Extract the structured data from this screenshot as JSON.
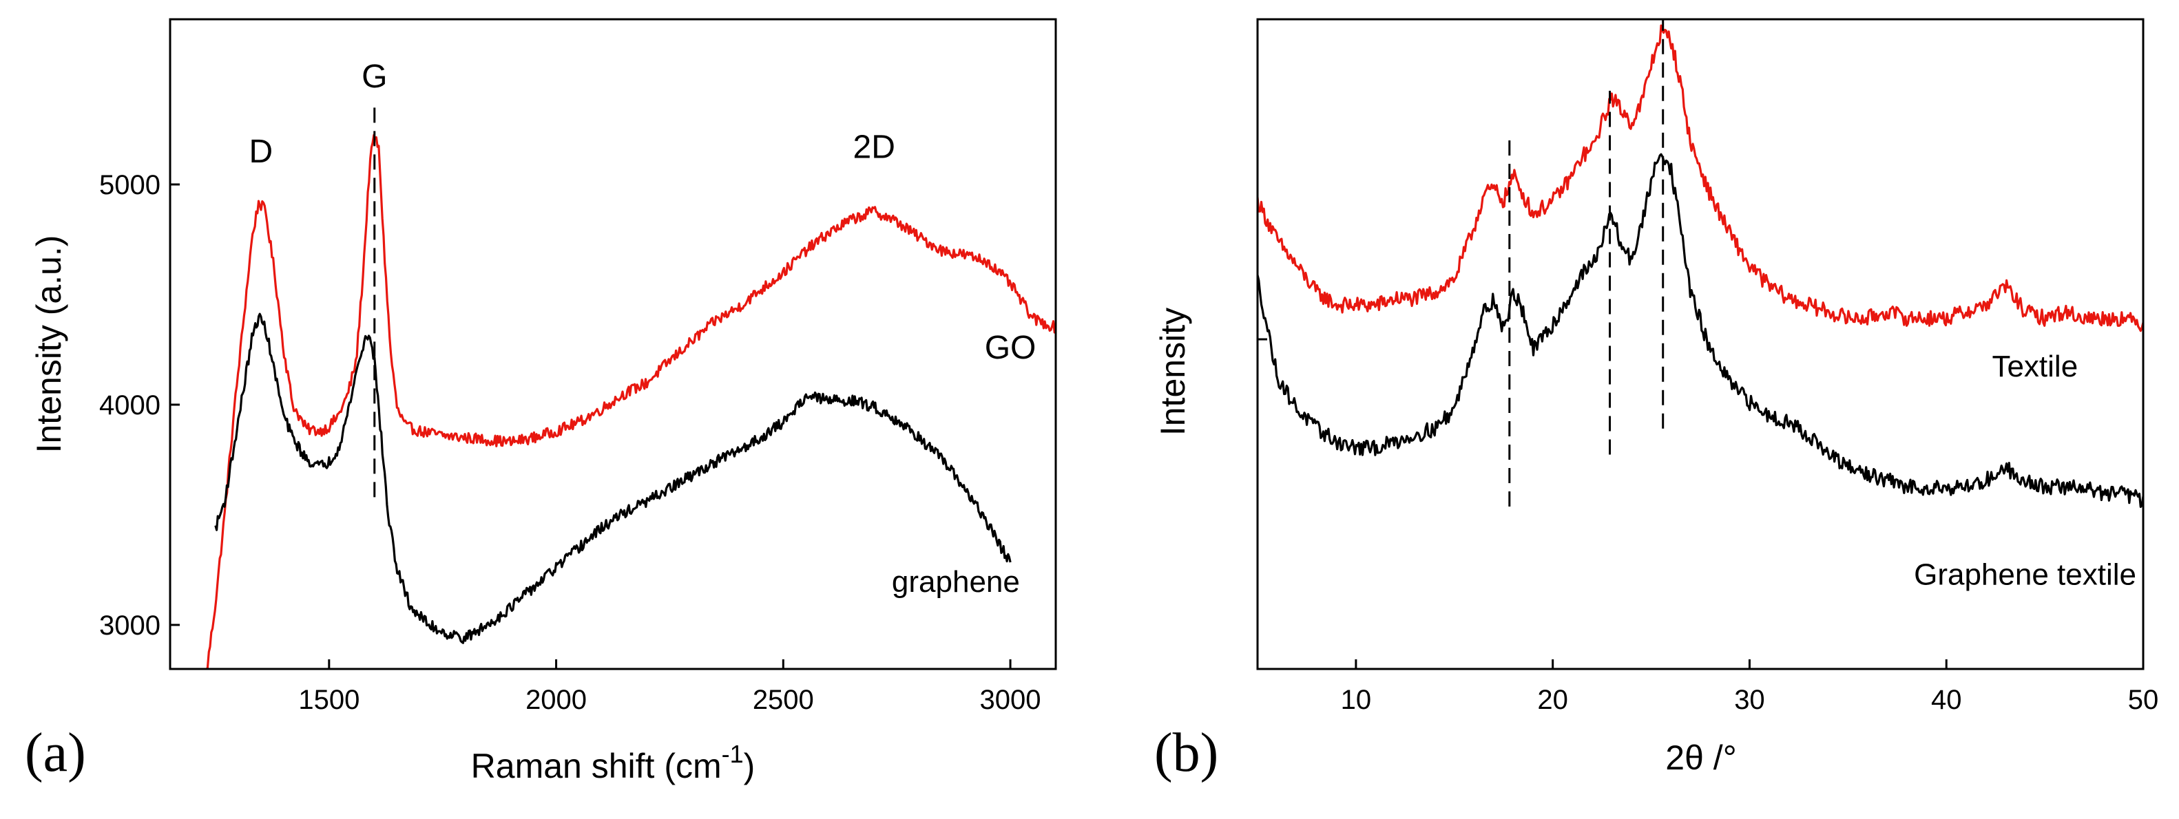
{
  "chart_data": [
    {
      "type": "line",
      "panel_label": "(a)",
      "title": "",
      "xlabel": "Raman shift (cm",
      "xlabel_superscript": "-1",
      "xlabel_suffix": ")",
      "ylabel": "Intensity (a.u.)",
      "xlim": [
        1150,
        3100
      ],
      "ylim": [
        2800,
        5750
      ],
      "xticks": [
        1500,
        2000,
        2500,
        3000
      ],
      "xtick_labels": [
        "1500",
        "2000",
        "2500",
        "3000"
      ],
      "yticks": [
        3000,
        4000,
        5000
      ],
      "ytick_labels": [
        "3000",
        "4000",
        "5000"
      ],
      "series": [
        {
          "name": "GO",
          "color": "#e8170f",
          "noise": 25,
          "x": [
            1230,
            1250,
            1270,
            1290,
            1310,
            1330,
            1345,
            1360,
            1380,
            1400,
            1420,
            1450,
            1480,
            1500,
            1520,
            1540,
            1560,
            1575,
            1590,
            1600,
            1610,
            1620,
            1635,
            1650,
            1670,
            1700,
            1750,
            1800,
            1850,
            1900,
            1950,
            2000,
            2050,
            2100,
            2150,
            2200,
            2250,
            2300,
            2350,
            2400,
            2450,
            2500,
            2550,
            2600,
            2650,
            2700,
            2750,
            2800,
            2850,
            2900,
            2950,
            3000,
            3050,
            3100
          ],
          "y": [
            2780,
            3100,
            3500,
            3950,
            4350,
            4750,
            4920,
            4880,
            4600,
            4250,
            4000,
            3890,
            3880,
            3900,
            3950,
            4040,
            4200,
            4600,
            5100,
            5230,
            5150,
            4750,
            4250,
            3980,
            3900,
            3880,
            3860,
            3850,
            3840,
            3830,
            3850,
            3880,
            3920,
            3980,
            4050,
            4100,
            4200,
            4290,
            4380,
            4440,
            4520,
            4600,
            4700,
            4780,
            4840,
            4880,
            4830,
            4760,
            4700,
            4680,
            4650,
            4550,
            4390,
            4350
          ]
        },
        {
          "name": "graphene",
          "color": "#000000",
          "noise": 25,
          "x": [
            1250,
            1270,
            1290,
            1310,
            1330,
            1345,
            1360,
            1380,
            1400,
            1420,
            1450,
            1480,
            1500,
            1520,
            1540,
            1560,
            1580,
            1590,
            1600,
            1615,
            1630,
            1650,
            1680,
            1720,
            1760,
            1800,
            1850,
            1900,
            1950,
            2000,
            2050,
            2100,
            2150,
            2200,
            2250,
            2300,
            2350,
            2400,
            2450,
            2500,
            2550,
            2600,
            2650,
            2700,
            2750,
            2800,
            2850,
            2900,
            2950,
            3000
          ],
          "y": [
            3440,
            3560,
            3800,
            4050,
            4300,
            4400,
            4350,
            4150,
            3950,
            3850,
            3750,
            3720,
            3740,
            3800,
            3950,
            4150,
            4300,
            4320,
            4200,
            3850,
            3500,
            3250,
            3080,
            3000,
            2960,
            2940,
            3000,
            3080,
            3170,
            3260,
            3350,
            3440,
            3510,
            3560,
            3620,
            3680,
            3740,
            3790,
            3850,
            3920,
            4040,
            4020,
            4020,
            3990,
            3930,
            3850,
            3750,
            3620,
            3460,
            3280
          ]
        }
      ],
      "annotations": [
        {
          "text": "D",
          "x": 1350,
          "y": 5100
        },
        {
          "text": "G",
          "x": 1600,
          "y": 5440
        },
        {
          "text": "2D",
          "x": 2700,
          "y": 5120
        },
        {
          "text": "GO",
          "x": 3000,
          "y": 4210
        },
        {
          "text": "graphene",
          "x": 2880,
          "y": 3150
        }
      ],
      "dashed_lines": [
        {
          "x": 1600,
          "y_from": 3580,
          "y_to": 5350
        }
      ]
    },
    {
      "type": "line",
      "panel_label": "(b)",
      "title": "",
      "xlabel": "2θ /°",
      "ylabel": "Intensity",
      "xlim": [
        5,
        50
      ],
      "ylim": [
        0,
        100
      ],
      "xticks": [
        10,
        20,
        30,
        40,
        50
      ],
      "xtick_labels": [
        "10",
        "20",
        "30",
        "40",
        "50"
      ],
      "yticks": [],
      "ytick_labels": [],
      "series": [
        {
          "name": "Textile",
          "color": "#e8170f",
          "noise": 1.2,
          "x": [
            5,
            6,
            7,
            8,
            9,
            10,
            11,
            12,
            13,
            14,
            15,
            16,
            16.5,
            17,
            17.5,
            18,
            18.5,
            19,
            20,
            21,
            21.5,
            22,
            22.5,
            23,
            23.5,
            24,
            24.5,
            25,
            25.5,
            26,
            26.5,
            27,
            28,
            29,
            30,
            31,
            32,
            33,
            34,
            35,
            36,
            37,
            38,
            39,
            40,
            41,
            42,
            43,
            44,
            45,
            46,
            47,
            48,
            49,
            50
          ],
          "y": [
            72,
            66,
            62,
            58,
            56,
            56,
            56,
            57,
            57,
            58,
            60,
            68,
            73,
            74,
            72,
            76,
            73,
            70,
            72,
            76,
            79,
            80,
            84,
            88,
            86,
            84,
            87,
            93,
            98,
            97,
            90,
            81,
            73,
            67,
            62,
            59,
            57,
            56,
            55,
            54,
            54,
            55,
            54,
            54,
            54,
            55,
            56,
            59,
            55,
            54,
            55,
            54,
            54,
            54,
            53
          ]
        },
        {
          "name": "Graphene textile",
          "color": "#000000",
          "noise": 1.2,
          "x": [
            5,
            6,
            7,
            8,
            9,
            10,
            11,
            12,
            13,
            14,
            15,
            16,
            16.5,
            17,
            17.5,
            18,
            18.5,
            19,
            20,
            21,
            21.5,
            22,
            22.5,
            23,
            23.5,
            24,
            24.5,
            25,
            25.5,
            26,
            26.5,
            27,
            28,
            29,
            30,
            31,
            32,
            33,
            34,
            35,
            36,
            37,
            38,
            39,
            40,
            41,
            42,
            43,
            44,
            45,
            46,
            47,
            48,
            49,
            50
          ],
          "y": [
            60,
            45,
            40,
            37,
            35,
            34,
            34,
            35,
            36,
            37,
            40,
            50,
            55,
            57,
            52,
            58,
            55,
            49,
            53,
            58,
            61,
            62,
            66,
            70,
            65,
            63,
            68,
            75,
            80,
            77,
            68,
            58,
            49,
            44,
            41,
            39,
            38,
            36,
            33,
            31,
            30,
            29,
            28,
            28,
            28,
            28,
            29,
            31,
            29,
            28,
            28,
            28,
            27,
            27,
            26
          ]
        }
      ],
      "annotations": [
        {
          "text": "Textile",
          "x": 44.5,
          "y": 45
        },
        {
          "text": "Graphene textile",
          "x": 44,
          "y": 13
        }
      ],
      "dashed_lines": [
        {
          "x": 17.8,
          "y_from": 25,
          "y_to": 82
        },
        {
          "x": 22.9,
          "y_from": 33,
          "y_to": 89
        },
        {
          "x": 25.6,
          "y_from": 37,
          "y_to": 100
        }
      ]
    }
  ]
}
